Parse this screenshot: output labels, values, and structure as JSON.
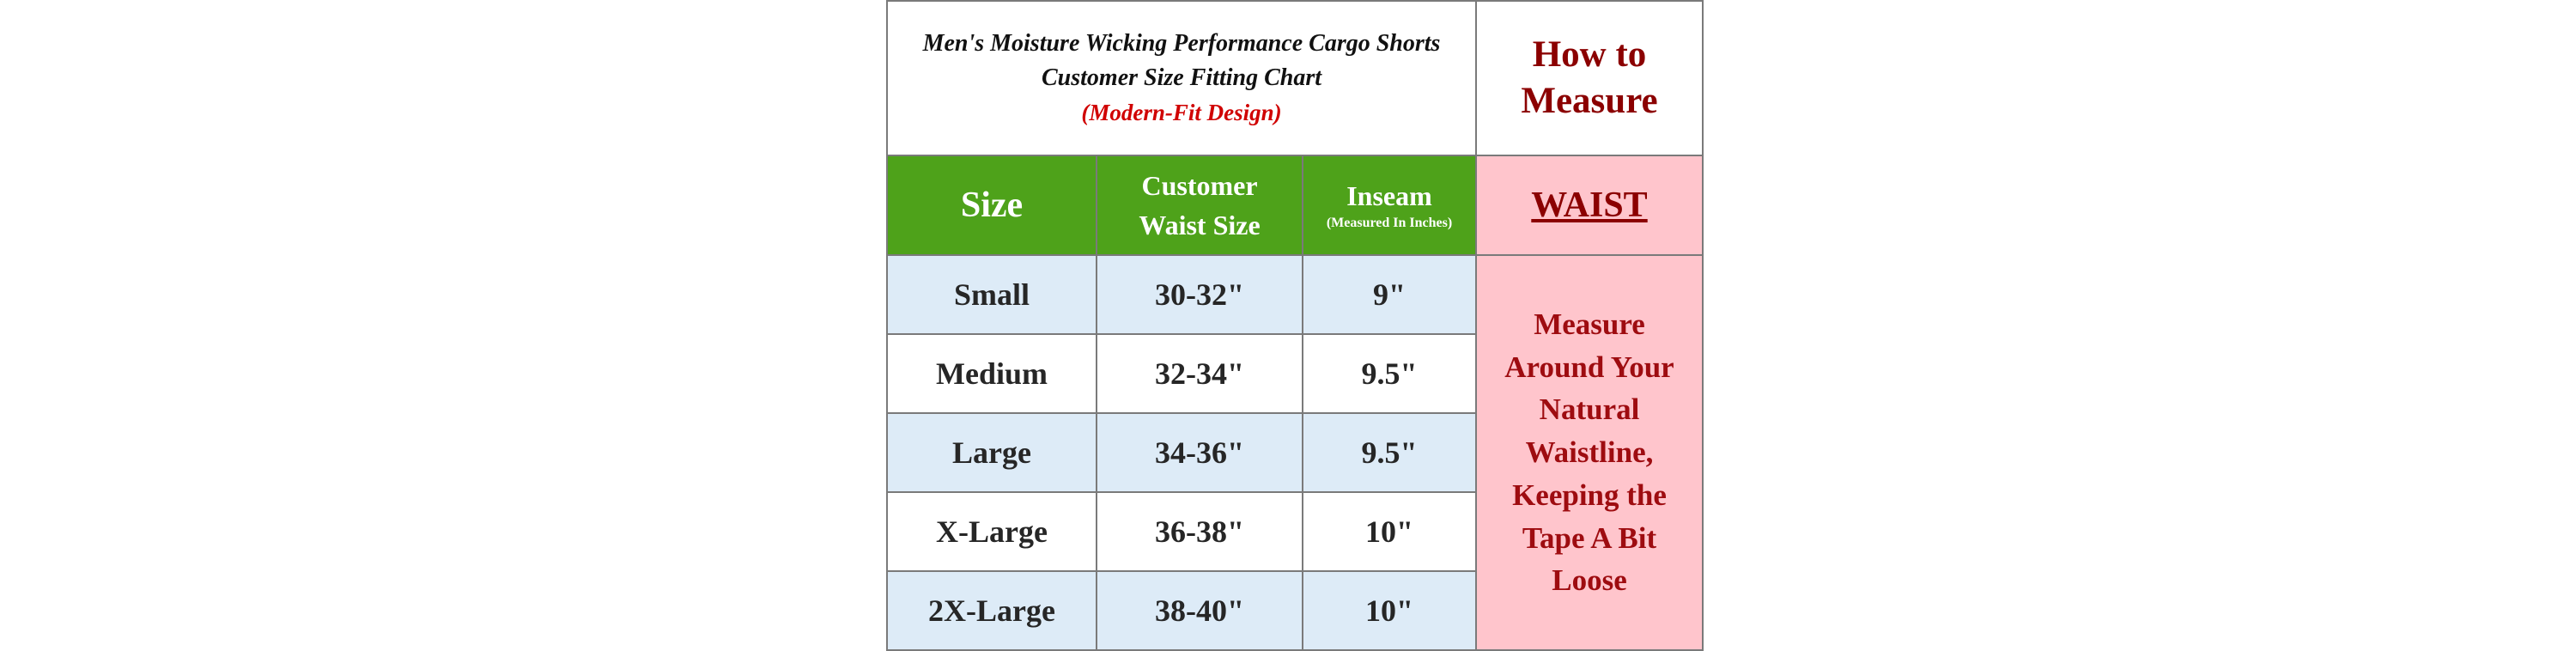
{
  "title": {
    "line1": "Men's Moisture Wicking Performance Cargo Shorts",
    "line2": "Customer Size Fitting Chart",
    "line3": "(Modern-Fit Design)"
  },
  "how_to": {
    "heading_line1": "How to",
    "heading_line2": "Measure",
    "measure_label": "WAIST",
    "instruction_lines": [
      "Measure",
      "Around Your",
      "Natural",
      "Waistline,",
      "Keeping the",
      "Tape A Bit",
      "Loose"
    ]
  },
  "headers": {
    "size": "Size",
    "waist_line1": "Customer",
    "waist_line2": "Waist Size",
    "inseam": "Inseam",
    "inseam_note": "(Measured In Inches)"
  },
  "rows": [
    {
      "size": "Small",
      "waist": "30-32\"",
      "inseam": "9\""
    },
    {
      "size": "Medium",
      "waist": "32-34\"",
      "inseam": "9.5\""
    },
    {
      "size": "Large",
      "waist": "34-36\"",
      "inseam": "9.5\""
    },
    {
      "size": "X-Large",
      "waist": "36-38\"",
      "inseam": "10\""
    },
    {
      "size": "2X-Large",
      "waist": "38-40\"",
      "inseam": "10\""
    }
  ],
  "colors": {
    "header_green": "#4ea21a",
    "row_blue": "#ddebf7",
    "panel_pink": "#ffc5cc",
    "accent_red": "#8b0000",
    "subtitle_red": "#d00000"
  }
}
